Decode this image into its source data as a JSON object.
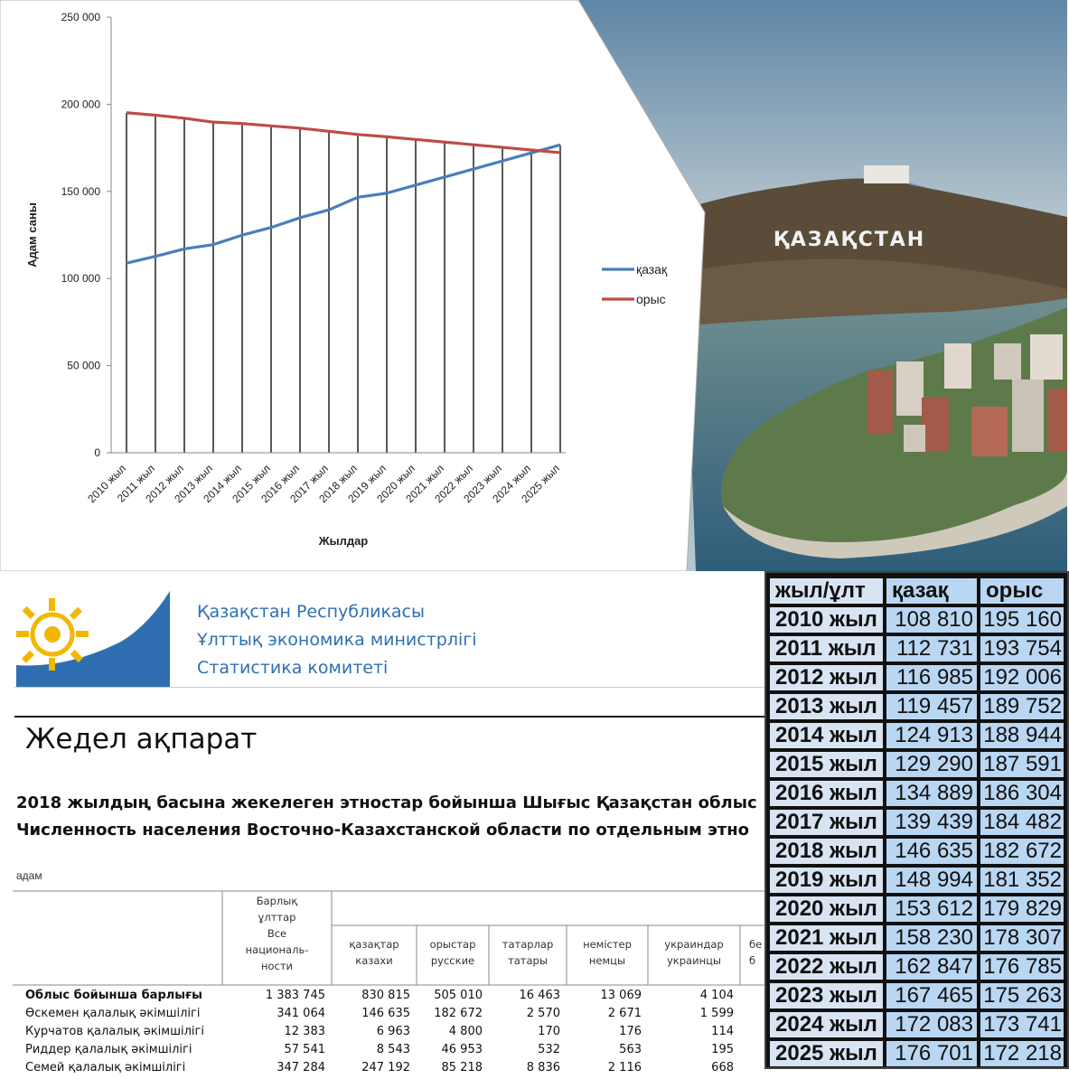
{
  "photo": {
    "sign_text": "ҚАЗАҚСТАН"
  },
  "chart_data": {
    "type": "line",
    "xlabel": "Жылдар",
    "ylabel": "Адам саны",
    "ylim": [
      0,
      250000
    ],
    "y_ticks": [
      "0",
      "50 000",
      "100 000",
      "150 000",
      "200 000",
      "250 000"
    ],
    "y_tick_values": [
      0,
      50000,
      100000,
      150000,
      200000,
      250000
    ],
    "grid": "vertical drop lines",
    "legend_position": "right",
    "categories": [
      "2010 жыл",
      "2011 жыл",
      "2012 жыл",
      "2013 жыл",
      "2014 жыл",
      "2015 жыл",
      "2016 жыл",
      "2017 жыл",
      "2018 жыл",
      "2019 жыл",
      "2020 жыл",
      "2021 жыл",
      "2022 жыл",
      "2023 жыл",
      "2024 жыл",
      "2025 жыл"
    ],
    "series": [
      {
        "name": "қазақ",
        "color": "#4a7ebb",
        "values": [
          108810,
          112731,
          116985,
          119457,
          124913,
          129290,
          134889,
          139439,
          146635,
          148994,
          153612,
          158230,
          162847,
          167465,
          172083,
          176701
        ]
      },
      {
        "name": "орыс",
        "color": "#be4b48",
        "values": [
          195160,
          193754,
          192006,
          189752,
          188944,
          187591,
          186304,
          184482,
          182672,
          181352,
          179829,
          178307,
          176785,
          175263,
          173741,
          172218
        ]
      }
    ]
  },
  "doc": {
    "org_lines": [
      "Қазақстан Республикасы",
      "Ұлттық экономика министрлігі",
      "Статистика комитеті"
    ],
    "heading": "Жедел ақпарат",
    "subheading_kz": "2018 жылдың басына жекелеген этностар бойынша Шығыс Қазақстан облыс",
    "subheading_ru": "Численность населения Восточно-Казахстанской области по отдельным этно",
    "unit": "адам",
    "columns": [
      [
        "Барлық",
        "ұлттар",
        "Все",
        "националь-",
        "ности"
      ],
      [
        "қазақтар",
        "казахи"
      ],
      [
        "орыстар",
        "русские"
      ],
      [
        "татарлар",
        "татары"
      ],
      [
        "немістер",
        "немцы"
      ],
      [
        "украиндар",
        "украинцы"
      ],
      [
        "бе",
        "б"
      ]
    ],
    "rows": [
      {
        "name": "Облыс бойынша барлығы",
        "bold": true,
        "values": [
          "1 383 745",
          "830 815",
          "505 010",
          "16 463",
          "13 069",
          "4 104"
        ]
      },
      {
        "name": "Өскемен қалалық әкімшілігі",
        "bold": false,
        "values": [
          "341 064",
          "146 635",
          "182 672",
          "2 570",
          "2 671",
          "1 599"
        ]
      },
      {
        "name": "Курчатов қалалық әкімшілігі",
        "bold": false,
        "values": [
          "12 383",
          "6 963",
          "4 800",
          "170",
          "176",
          "114"
        ]
      },
      {
        "name": "Риддер қалалық әкімшілігі",
        "bold": false,
        "values": [
          "57 541",
          "8 543",
          "46 953",
          "532",
          "563",
          "195"
        ]
      },
      {
        "name": "Семей қалалық әкімшілігі",
        "bold": false,
        "values": [
          "347 284",
          "247 192",
          "85 218",
          "8 836",
          "2 116",
          "668"
        ]
      }
    ]
  },
  "table": {
    "headers": [
      "жыл/ұлт",
      "қазақ",
      "орыс"
    ],
    "rows": [
      [
        "2010 жыл",
        "108 810",
        "195 160"
      ],
      [
        "2011 жыл",
        "112 731",
        "193 754"
      ],
      [
        "2012 жыл",
        "116 985",
        "192 006"
      ],
      [
        "2013 жыл",
        "119 457",
        "189 752"
      ],
      [
        "2014 жыл",
        "124 913",
        "188 944"
      ],
      [
        "2015 жыл",
        "129 290",
        "187 591"
      ],
      [
        "2016 жыл",
        "134 889",
        "186 304"
      ],
      [
        "2017 жыл",
        "139 439",
        "184 482"
      ],
      [
        "2018 жыл",
        "146 635",
        "182 672"
      ],
      [
        "2019 жыл",
        "148 994",
        "181 352"
      ],
      [
        "2020 жыл",
        "153 612",
        "179 829"
      ],
      [
        "2021 жыл",
        "158 230",
        "178 307"
      ],
      [
        "2022 жыл",
        "162 847",
        "176 785"
      ],
      [
        "2023 жыл",
        "167 465",
        "175 263"
      ],
      [
        "2024 жыл",
        "172 083",
        "173 741"
      ],
      [
        "2025 жыл",
        "176 701",
        "172 218"
      ]
    ]
  }
}
